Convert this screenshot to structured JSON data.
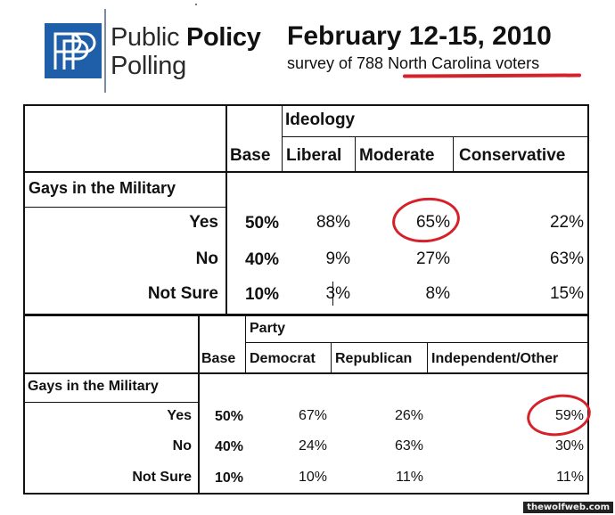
{
  "header": {
    "logo_line1_regular": "Public ",
    "logo_line1_bold": "Policy",
    "logo_line2": "Polling",
    "title": "February 12-15, 2010",
    "subtitle_prefix": "survey of 788 ",
    "subtitle_highlight": "North Carolina voters"
  },
  "table_ideology": {
    "group_label": "Ideology",
    "base_label": "Base",
    "columns": [
      "Liberal",
      "Moderate",
      "Conservative"
    ],
    "question": "Gays in the Military",
    "rows": [
      {
        "label": "Yes",
        "base": "50%",
        "values": [
          "88%",
          "65%",
          "22%"
        ]
      },
      {
        "label": "No",
        "base": "40%",
        "values": [
          "9%",
          "27%",
          "63%"
        ]
      },
      {
        "label": "Not Sure",
        "base": "10%",
        "values": [
          "3%",
          "8%",
          "15%"
        ]
      }
    ]
  },
  "table_party": {
    "group_label": "Party",
    "base_label": "Base",
    "columns": [
      "Democrat",
      "Republican",
      "Independent/Other"
    ],
    "question": "Gays in the Military",
    "rows": [
      {
        "label": "Yes",
        "base": "50%",
        "values": [
          "67%",
          "26%",
          "59%"
        ]
      },
      {
        "label": "No",
        "base": "40%",
        "values": [
          "24%",
          "63%",
          "30%"
        ]
      },
      {
        "label": "Not Sure",
        "base": "10%",
        "values": [
          "10%",
          "11%",
          "11%"
        ]
      }
    ]
  },
  "highlights": {
    "circle_color": "#d4212a",
    "circled_values": [
      "Moderate / Yes: 65%",
      "Independent/Other / Yes: 59%"
    ]
  },
  "watermark": "thewolfweb.com"
}
